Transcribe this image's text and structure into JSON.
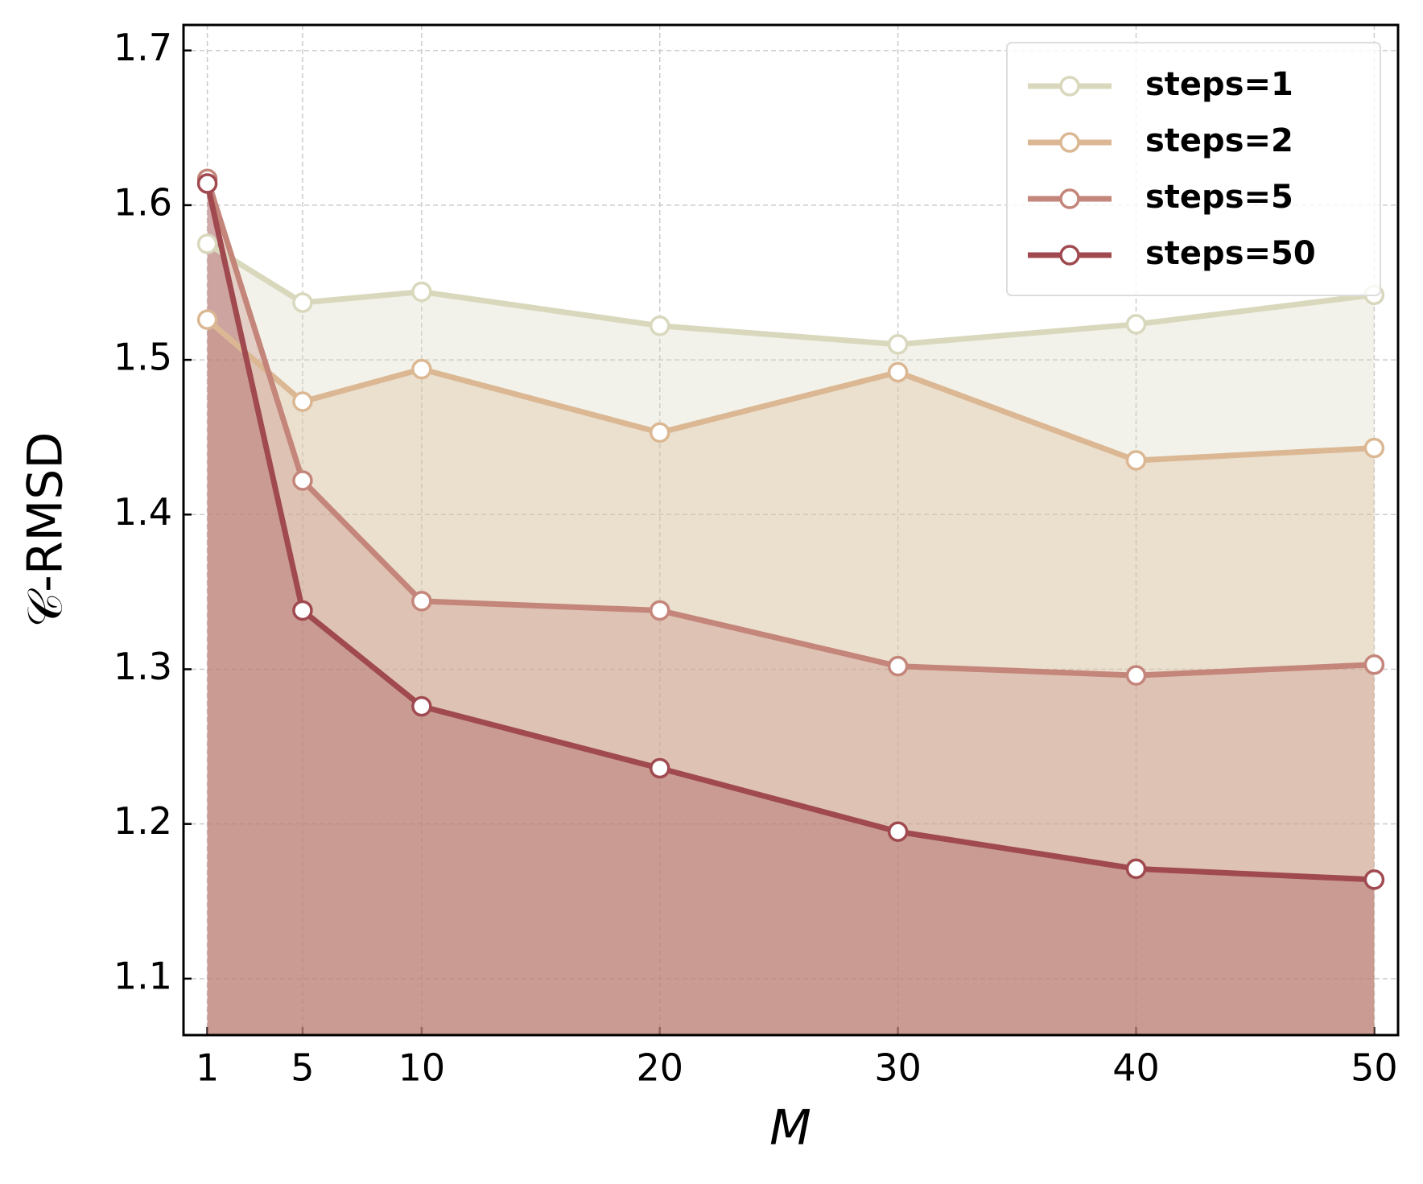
{
  "chart_data": {
    "type": "line",
    "x_label": "M",
    "y_label": "𝒞-RMSD",
    "x": [
      1,
      5,
      10,
      20,
      30,
      40,
      50
    ],
    "series": [
      {
        "name": "steps=1",
        "color": "#d9d8bd",
        "values": [
          1.575,
          1.537,
          1.544,
          1.522,
          1.51,
          1.523,
          1.542
        ]
      },
      {
        "name": "steps=2",
        "color": "#dbb893",
        "values": [
          1.526,
          1.473,
          1.494,
          1.453,
          1.492,
          1.435,
          1.443
        ]
      },
      {
        "name": "steps=5",
        "color": "#c4857a",
        "values": [
          1.617,
          1.422,
          1.344,
          1.338,
          1.302,
          1.296,
          1.303
        ]
      },
      {
        "name": "steps=50",
        "color": "#a04a50",
        "values": [
          1.614,
          1.338,
          1.276,
          1.236,
          1.195,
          1.171,
          1.164
        ]
      }
    ],
    "xlim": [
      0,
      51
    ],
    "ylim": [
      1.0635,
      1.7165
    ],
    "xticks": [
      1,
      5,
      10,
      20,
      30,
      40,
      50
    ],
    "yticks": [
      1.1,
      1.2,
      1.3,
      1.4,
      1.5,
      1.6,
      1.7
    ],
    "grid": true,
    "legend": "upper right",
    "fill_under": true
  }
}
